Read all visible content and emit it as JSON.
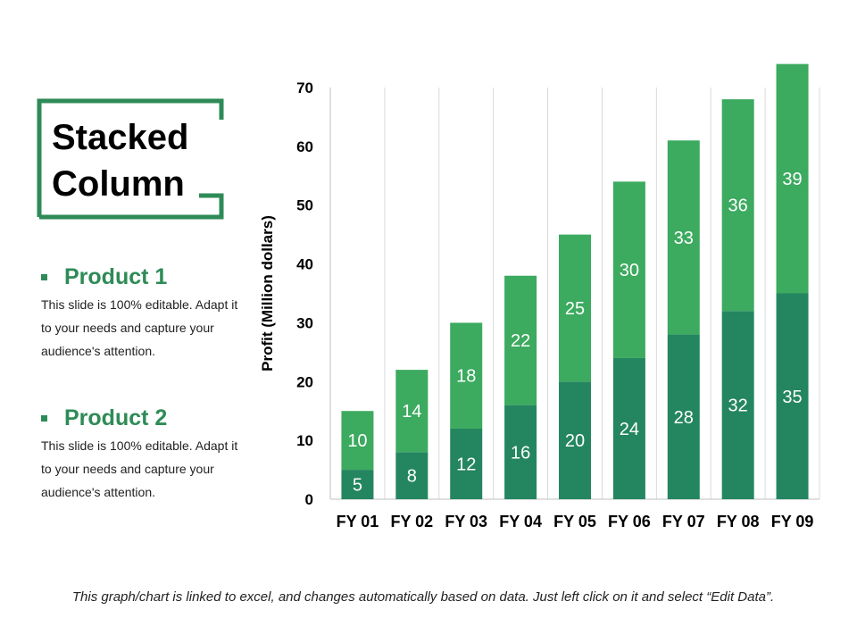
{
  "slide": {
    "title_line1": "Stacked",
    "title_line2": "Column",
    "products": [
      {
        "name": "Product 1",
        "description": "This slide is 100% editable. Adapt it to your needs and capture your audience's attention."
      },
      {
        "name": "Product 2",
        "description": "This slide is 100% editable. Adapt it to your needs and capture your audience's attention."
      }
    ],
    "footnote": "This graph/chart is linked to excel, and changes automatically based on data. Just left click on it and select “Edit Data”.",
    "accent_color": "#2e8b57"
  },
  "chart_data": {
    "type": "bar",
    "stacked": true,
    "categories": [
      "FY 01",
      "FY 02",
      "FY 03",
      "FY 04",
      "FY 05",
      "FY 06",
      "FY 07",
      "FY 08",
      "FY 09"
    ],
    "series": [
      {
        "values": [
          5,
          8,
          12,
          16,
          20,
          24,
          28,
          32,
          35
        ],
        "color": "#248660"
      },
      {
        "values": [
          10,
          14,
          18,
          22,
          25,
          30,
          33,
          36,
          39
        ],
        "color": "#3caa5f"
      }
    ],
    "title": "",
    "xlabel": "",
    "ylabel": "Profit  (Million dollars)",
    "ylim": [
      0,
      70
    ],
    "yticks": [
      0,
      10,
      20,
      30,
      40,
      50,
      60,
      70
    ],
    "grid": "vertical",
    "data_labels": true,
    "legend": "none"
  }
}
